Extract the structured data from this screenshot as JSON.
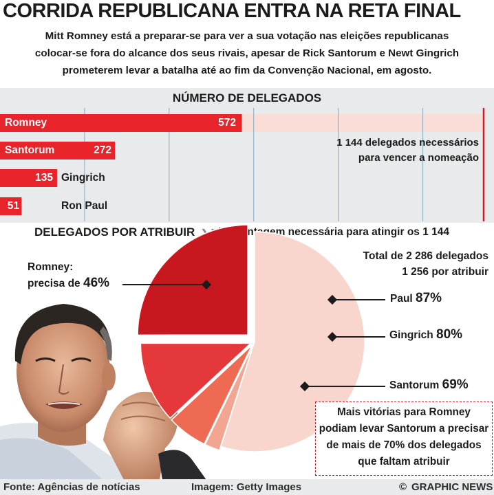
{
  "headline": "CORRIDA REPUBLICANA ENTRA NA RETA FINAL",
  "subtitle": {
    "line1": "Mitt Romney está a preparar-se para ver a sua votação nas eleições republicanas",
    "line2": "colocar-se fora do alcance dos seus rivais, apesar de Rick Santorum e Newt Gingrich",
    "line3": "prometerem levar a batalha até ao fim da Convenção Nacional, em agosto."
  },
  "bar_section": {
    "title": "NÚMERO DE DELEGADOS",
    "needed_line1": "1 144 delegados necessários",
    "needed_line2": "para vencer a nomeação"
  },
  "pie_section": {
    "title": "DELEGADOS POR ATRIBUIR",
    "arrow_icon": "double-chevron-right",
    "subtitle": "Percentagem necessária para atingir os 1 144",
    "total_line1": "Total de 2 286 delegados",
    "total_line2": "1 256 por atribuir",
    "romney_line1": "Romney:",
    "romney_line2": "precisa de",
    "romney_pct": "46%",
    "paul_name": "Paul",
    "paul_pct": "87%",
    "gingrich_name": "Gingrich",
    "gingrich_pct": "80%",
    "santorum_name": "Santorum",
    "santorum_pct": "69%"
  },
  "note_box": {
    "line1": "Mais vitórias para Romney",
    "line2": "podiam levar Santorum a precisar",
    "line3": "de mais de 70% dos delegados",
    "line4": "que faltam atribuir"
  },
  "footer": {
    "source": "Fonte: Agências de notícias",
    "image": "Imagem: Getty Images",
    "brand_icon": "copyright",
    "brand": "GRAPHIC NEWS"
  },
  "colors": {
    "bar_red": "#e8232a",
    "needed_shade": "#f9ddd6",
    "target_line": "#c81d25",
    "grid": "#8fb4cc",
    "pie_romney": "#c8181f",
    "pie_santorum": "#e5383a",
    "pie_gingrich": "#ee6a52",
    "pie_paul": "#f2a591",
    "pie_unallocated": "#f8d6cd"
  },
  "chart_data": [
    {
      "type": "bar",
      "orientation": "horizontal",
      "title": "NÚMERO DE DELEGADOS",
      "categories": [
        "Romney",
        "Santorum",
        "Gingrich",
        "Ron Paul"
      ],
      "values": [
        572,
        272,
        135,
        51
      ],
      "value_labels": [
        "572",
        "272",
        "135",
        "51"
      ],
      "target": 1144,
      "xlim": [
        0,
        1144
      ],
      "grid": true
    },
    {
      "type": "pie",
      "title": "DELEGADOS POR ATRIBUIR",
      "subtitle": "Percentagem necessária para atingir os 1 144",
      "total": 2286,
      "unallocated": 1256,
      "slices": [
        {
          "label": "Romney",
          "value": 572,
          "required_pct": 46
        },
        {
          "label": "Santorum",
          "value": 272,
          "required_pct": 69
        },
        {
          "label": "Gingrich",
          "value": 135,
          "required_pct": 80
        },
        {
          "label": "Paul",
          "value": 51,
          "required_pct": 87
        },
        {
          "label": "",
          "value": 1256
        }
      ]
    }
  ]
}
